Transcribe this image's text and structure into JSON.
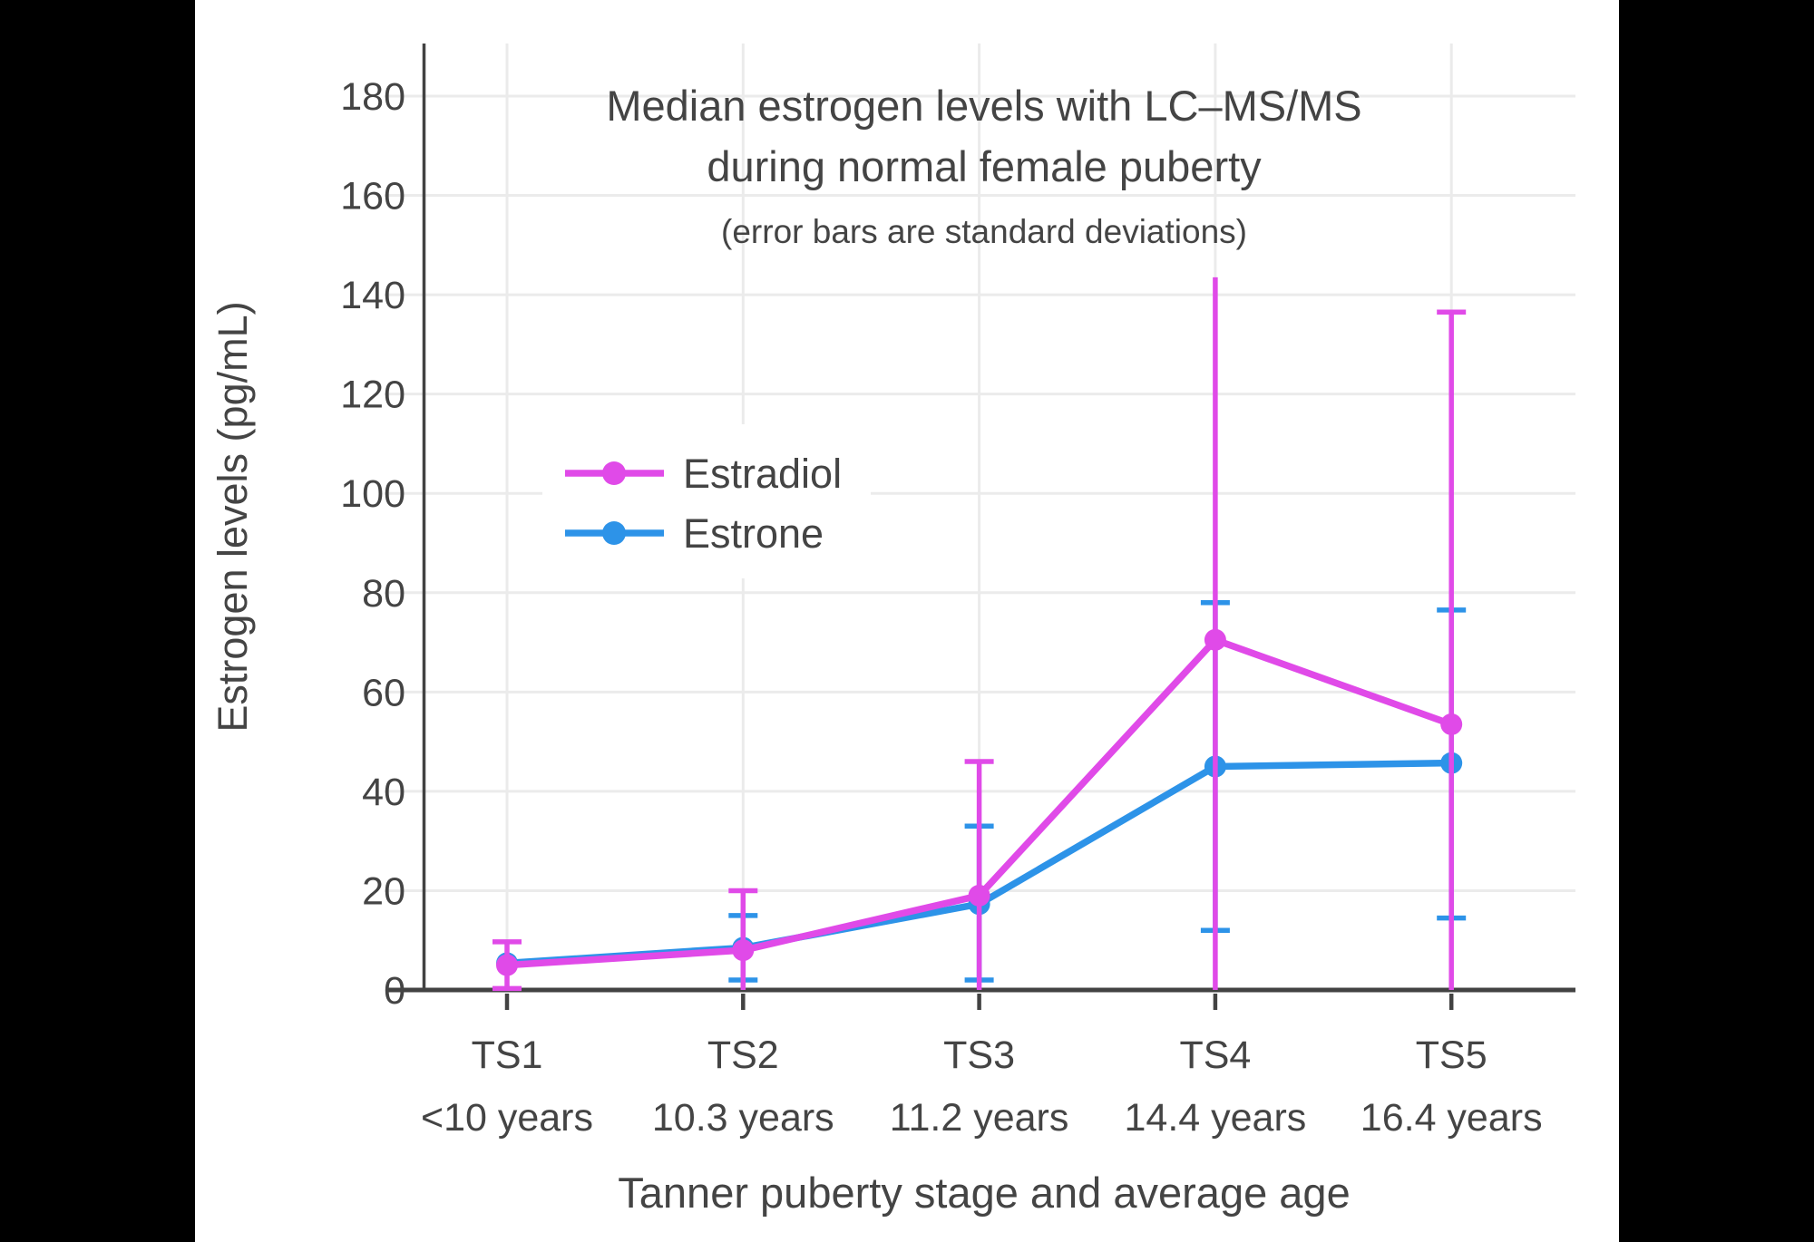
{
  "page": {
    "background": "#000000",
    "canvas_background": "#ffffff"
  },
  "colors": {
    "estradiol": "#E04AE8",
    "estrone": "#2D93E8",
    "axis": "#424242",
    "text": "#444444",
    "grid": "#EBEBEB"
  },
  "legend": {
    "items": [
      {
        "label": "Estradiol"
      },
      {
        "label": "Estrone"
      }
    ]
  },
  "chart_data": {
    "type": "line",
    "title": "Median estrogen levels with LC–MS/MS",
    "title_line2": "during normal female puberty",
    "subtitle": "(error bars are standard deviations)",
    "xlabel": "Tanner puberty stage and average age",
    "ylabel": "Estrogen levels (pg/mL)",
    "ylim": [
      0,
      190
    ],
    "ytick_min": 0,
    "ytick_max": 180,
    "ytick_step": 20,
    "grid": true,
    "legend_position": "inside-upper-left",
    "categories": [
      "TS1",
      "TS2",
      "TS3",
      "TS4",
      "TS5"
    ],
    "category_ages": [
      "<10 years",
      "10.3 years",
      "11.2 years",
      "14.4 years",
      "16.4 years"
    ],
    "series": [
      {
        "name": "Estrone",
        "color": "#2D93E8",
        "values": [
          5.4,
          8.5,
          17.3,
          45,
          45.7
        ],
        "error_bars": [
          null,
          {
            "top": 15,
            "bottom": 2
          },
          {
            "top": 33,
            "bottom": 2
          },
          {
            "top": 78,
            "bottom": 12
          },
          {
            "top": 76.5,
            "bottom": 14.5
          }
        ]
      },
      {
        "name": "Estradiol",
        "color": "#E04AE8",
        "values": [
          5,
          8,
          19,
          70.5,
          53.5
        ],
        "error_bars": [
          {
            "top": 9.7,
            "bottom": 0.3,
            "top_cap": true,
            "bottom_cap": true
          },
          {
            "top": 20,
            "bottom": 0,
            "top_cap": true,
            "bottom_cap": false
          },
          {
            "top": 46,
            "bottom": 0,
            "top_cap": true,
            "bottom_cap": false
          },
          {
            "top": 143.5,
            "bottom": 0,
            "top_cap": false,
            "bottom_cap": false
          },
          {
            "top": 136.5,
            "bottom": 0,
            "top_cap": true,
            "bottom_cap": false
          }
        ]
      }
    ]
  }
}
